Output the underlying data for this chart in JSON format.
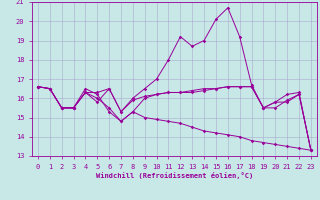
{
  "xlabel": "Windchill (Refroidissement éolien,°C)",
  "background_color": "#c8e8e8",
  "grid_color": "#aaaacc",
  "line_color": "#990099",
  "xlim": [
    -0.5,
    23.5
  ],
  "ylim": [
    13,
    21
  ],
  "yticks": [
    13,
    14,
    15,
    16,
    17,
    18,
    19,
    20,
    21
  ],
  "xticks": [
    0,
    1,
    2,
    3,
    4,
    5,
    6,
    7,
    8,
    9,
    10,
    11,
    12,
    13,
    14,
    15,
    16,
    17,
    18,
    19,
    20,
    21,
    22,
    23
  ],
  "series": [
    {
      "x": [
        0,
        1,
        2,
        3,
        4,
        5,
        6,
        7,
        8,
        9,
        10,
        11,
        12,
        13,
        14,
        15,
        16,
        17,
        18,
        19,
        20,
        21,
        22,
        23
      ],
      "y": [
        16.6,
        16.5,
        15.5,
        15.5,
        16.3,
        16.3,
        16.5,
        15.3,
        15.9,
        16.1,
        16.2,
        16.3,
        16.3,
        16.4,
        16.5,
        16.5,
        16.6,
        16.6,
        16.6,
        15.5,
        15.5,
        15.9,
        16.2,
        13.3
      ]
    },
    {
      "x": [
        0,
        1,
        2,
        3,
        4,
        5,
        6,
        7,
        8,
        9,
        10,
        11,
        12,
        13,
        14,
        15,
        16,
        17,
        18,
        19,
        20,
        21,
        22,
        23
      ],
      "y": [
        16.6,
        16.5,
        15.5,
        15.5,
        16.3,
        15.8,
        16.5,
        15.3,
        16.0,
        16.5,
        17.0,
        18.0,
        19.2,
        18.7,
        19.0,
        20.1,
        20.7,
        19.2,
        16.7,
        15.5,
        15.8,
        16.2,
        16.3,
        13.3
      ]
    },
    {
      "x": [
        0,
        1,
        2,
        3,
        4,
        5,
        6,
        7,
        8,
        9,
        10,
        11,
        12,
        13,
        14,
        15,
        16,
        17,
        18,
        19,
        20,
        21,
        22,
        23
      ],
      "y": [
        16.6,
        16.5,
        15.5,
        15.5,
        16.3,
        16.0,
        15.5,
        14.8,
        15.3,
        16.0,
        16.2,
        16.3,
        16.3,
        16.3,
        16.4,
        16.5,
        16.6,
        16.6,
        16.6,
        15.5,
        15.8,
        15.8,
        16.2,
        13.3
      ]
    },
    {
      "x": [
        0,
        1,
        2,
        3,
        4,
        5,
        6,
        7,
        8,
        9,
        10,
        11,
        12,
        13,
        14,
        15,
        16,
        17,
        18,
        19,
        20,
        21,
        22,
        23
      ],
      "y": [
        16.6,
        16.5,
        15.5,
        15.5,
        16.5,
        16.2,
        15.3,
        14.8,
        15.3,
        15.0,
        14.9,
        14.8,
        14.7,
        14.5,
        14.3,
        14.2,
        14.1,
        14.0,
        13.8,
        13.7,
        13.6,
        13.5,
        13.4,
        13.3
      ]
    }
  ]
}
